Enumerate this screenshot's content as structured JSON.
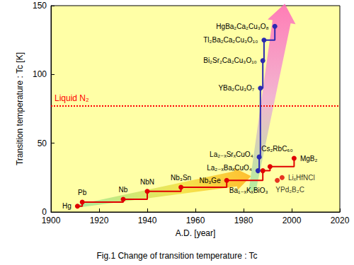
{
  "chart_data": {
    "type": "line",
    "title": "Fig.1 Change of transition temperature : Tc",
    "x_label": "A.D. [year]",
    "y_label": "Transition temperature : Tc [K]",
    "xlim": [
      1900,
      2020
    ],
    "xticks": [
      1900,
      1920,
      1940,
      1960,
      1980,
      2000,
      2020
    ],
    "ylim": [
      0,
      150
    ],
    "yticks": [
      0,
      50,
      100,
      150
    ],
    "grid": false,
    "series": [
      {
        "color": "#e00000",
        "line_style": "step",
        "marker": "circle",
        "x": [
          1911,
          1913,
          1930,
          1940,
          1954,
          1973,
          1988,
          1991,
          2001
        ],
        "values": [
          4.2,
          7.2,
          9.2,
          15,
          18,
          23,
          30,
          33,
          39
        ],
        "point_labels": [
          "Hg",
          "Pb",
          "Nb",
          "NbN",
          "Nb₃Sn",
          "Nb₃Ge",
          "Ba₁₋ₓKₓBiO₃",
          "Cs₂RbC₆₀",
          "MgB₂"
        ]
      },
      {
        "color": "#e00000",
        "type": "scatter",
        "marker": "circle",
        "x": [
          1994,
          1996
        ],
        "values": [
          23,
          25
        ],
        "point_labels": [
          "YPd₂B₂C",
          "LiₓHfNCl"
        ]
      },
      {
        "color": "#2a2ab0",
        "line_style": "step",
        "marker": "circle",
        "x": [
          1986,
          1986.5,
          1987,
          1988,
          1988.5,
          1993
        ],
        "values": [
          30,
          40,
          90,
          110,
          125,
          135
        ],
        "point_labels": [
          "La₂₋ₓBaₓCuO₄",
          "La₂₋ₓSrₓCuO₄",
          "YBa₂Cu₃O₇",
          "Bi₂Sr₂Ca₂Cu₃O₁₀",
          "Tl₂Ba₂Ca₂Cu₃O₁₀",
          "HgBa₂Ca₂Cu₃O₈"
        ]
      }
    ],
    "annotations": [
      {
        "text": "Liquid N₂",
        "y": 77,
        "color": "#ff0000",
        "line_style": "dotted"
      }
    ]
  }
}
